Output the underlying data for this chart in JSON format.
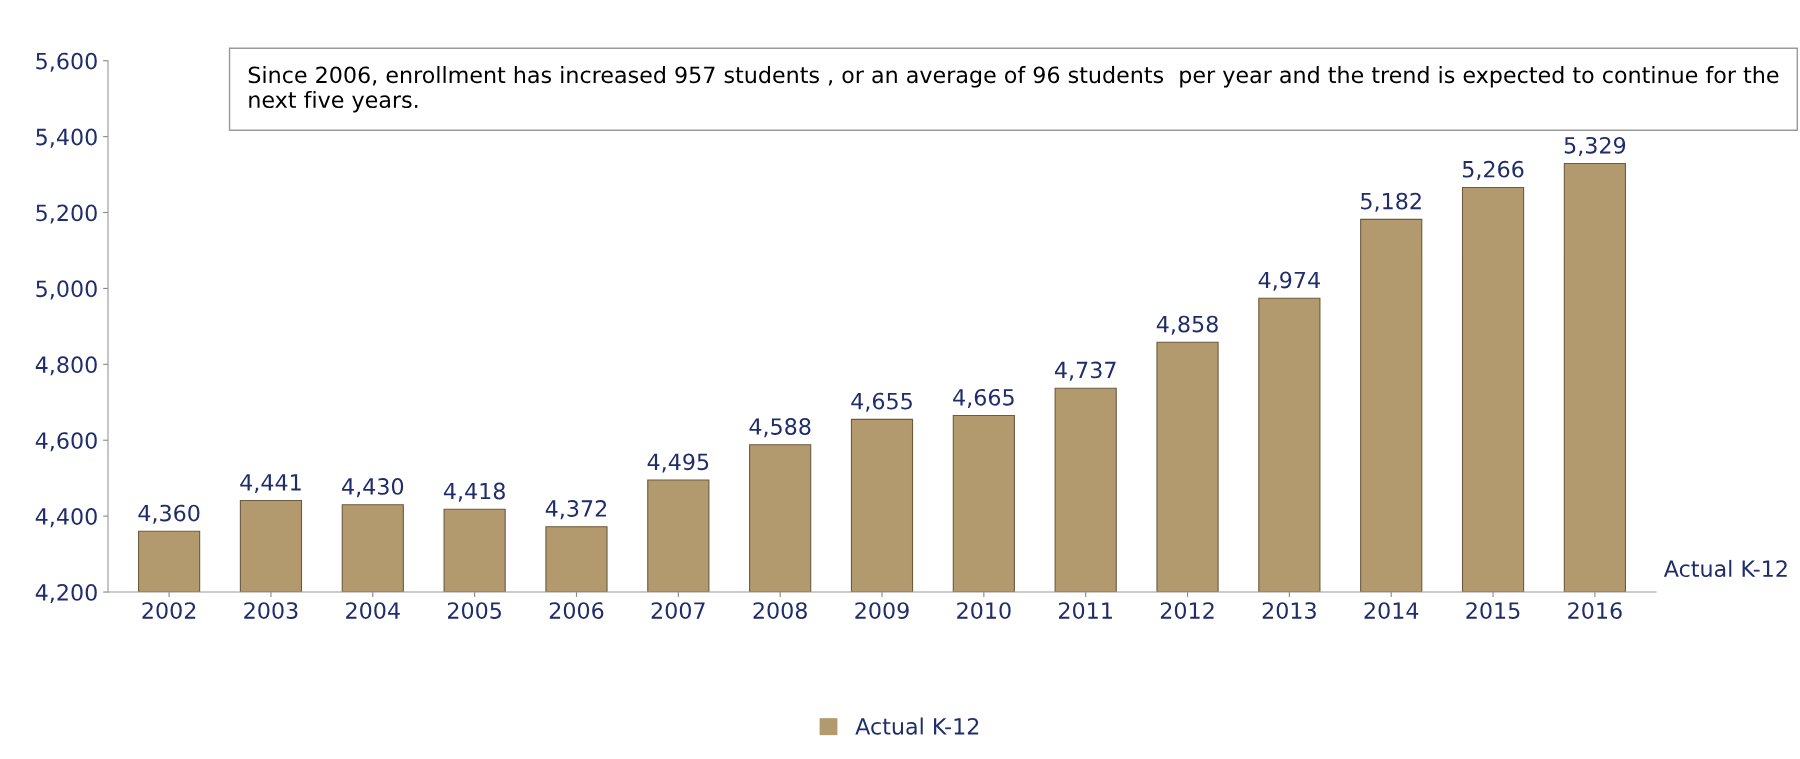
{
  "chart_data": {
    "type": "bar",
    "categories": [
      "2002",
      "2003",
      "2004",
      "2005",
      "2006",
      "2007",
      "2008",
      "2009",
      "2010",
      "2011",
      "2012",
      "2013",
      "2014",
      "2015",
      "2016"
    ],
    "series": [
      {
        "name": "Actual K-12",
        "color": "#b39a6e",
        "values": [
          4360,
          4441,
          4430,
          4418,
          4372,
          4495,
          4588,
          4655,
          4665,
          4737,
          4858,
          4974,
          5182,
          5266,
          5329
        ],
        "value_labels": [
          "4,360",
          "4,441",
          "4,430",
          "4,418",
          "4,372",
          "4,495",
          "4,588",
          "4,655",
          "4,665",
          "4,737",
          "4,858",
          "4,974",
          "5,182",
          "5,266",
          "5,329"
        ]
      }
    ],
    "ylim": [
      4200,
      5600
    ],
    "yticks": [
      {
        "value": 4200,
        "label": "4,200"
      },
      {
        "value": 4400,
        "label": "4,400"
      },
      {
        "value": 4600,
        "label": "4,600"
      },
      {
        "value": 4800,
        "label": "4,800"
      },
      {
        "value": 5000,
        "label": "5,000"
      },
      {
        "value": 5200,
        "label": "5,200"
      },
      {
        "value": 5400,
        "label": "5,400"
      },
      {
        "value": 5600,
        "label": "5,600"
      }
    ],
    "annotations": [
      "Since 2006, enrollment has increased 957 students , or an average of 96 students  per year and the trend is expected to continue for the next five years.",
      "Actual K-12"
    ],
    "grid": false,
    "legend": "bottom"
  }
}
